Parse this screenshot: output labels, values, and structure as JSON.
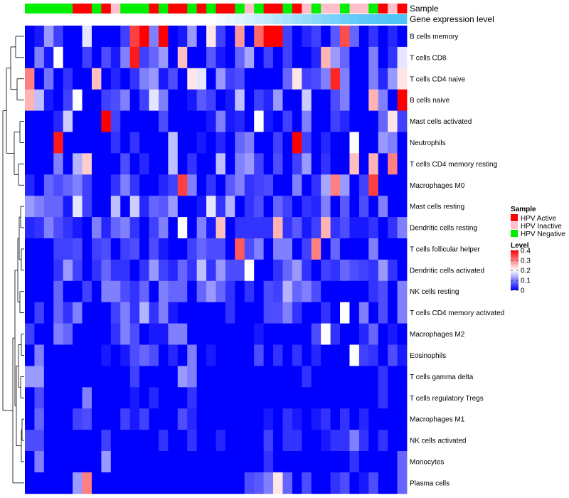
{
  "chart_data": {
    "type": "heatmap",
    "annotation_rows": [
      "Sample",
      "Gene expression level"
    ],
    "sample_legend": {
      "title": "Sample",
      "items": [
        {
          "label": "HPV Active",
          "color": "#ff0000"
        },
        {
          "label": "HPV Inactive",
          "color": "#ffc0cb"
        },
        {
          "label": "HPV Negative",
          "color": "#00ee00"
        }
      ]
    },
    "level_legend": {
      "title": "Level",
      "ticks": [
        "0.4",
        "0.3",
        "0.2",
        "0.1",
        "0"
      ],
      "range": [
        0,
        0.4
      ],
      "colors": {
        "low": "#0000ff",
        "mid": "#ffffff",
        "high": "#ff0000"
      }
    },
    "sample_groups": [
      "N",
      "N",
      "N",
      "N",
      "N",
      "A",
      "A",
      "N",
      "A",
      "I",
      "N",
      "N",
      "N",
      "A",
      "N",
      "A",
      "A",
      "N",
      "A",
      "N",
      "A",
      "A",
      "N",
      "I",
      "N",
      "A",
      "A",
      "N",
      "A",
      "I",
      "N",
      "I",
      "I",
      "N",
      "I",
      "I",
      "N",
      "A",
      "I",
      "A"
    ],
    "gene_expression_level": [
      0,
      0,
      0,
      0,
      0,
      0,
      0,
      0,
      0,
      0,
      0,
      0,
      0,
      0,
      0,
      0,
      0,
      0,
      0,
      0,
      0.06,
      0.12,
      0.18,
      0.24,
      0.3,
      0.36,
      0.42,
      0.48,
      0.54,
      0.6,
      0.66,
      0.72,
      0.78,
      0.84,
      0.88,
      0.92,
      0.95,
      0.97,
      0.99,
      1
    ],
    "rows": [
      "B cells memory",
      "T cells CD8",
      "T cells CD4 naive",
      "B cells naive",
      "Mast cells activated",
      "Neutrophils",
      "T cells CD4 memory resting",
      "Macrophages M0",
      "Mast cells resting",
      "Dendritic cells resting",
      "T cells follicular helper",
      "Dendritic cells activated",
      "NK cells resting",
      "T cells CD4 memory activated",
      "Macrophages M2",
      "Eosinophils",
      "T cells gamma delta",
      "T cells regulatory  Tregs",
      "Macrophages M1",
      "NK cells activated",
      "Monocytes",
      "Plasma cells"
    ],
    "values": [
      [
        0,
        0.02,
        0.12,
        0.05,
        0,
        0,
        0.18,
        0,
        0,
        0,
        0.05,
        0.35,
        0.4,
        0.1,
        0.4,
        0,
        0.02,
        0.12,
        0,
        0.22,
        0.05,
        0,
        0.28,
        0,
        0.32,
        0.4,
        0.4,
        0.05,
        0,
        0.03,
        0.05,
        0,
        0.07,
        0.34,
        0.08,
        0,
        0.04,
        0,
        0.03,
        0
      ],
      [
        0,
        0.1,
        0.02,
        0.2,
        0,
        0,
        0.05,
        0,
        0.06,
        0.02,
        0.1,
        0.38,
        0.05,
        0.08,
        0.12,
        0,
        0.25,
        0,
        0,
        0.07,
        0.02,
        0,
        0.08,
        0.13,
        0,
        0.05,
        0,
        0.05,
        0,
        0,
        0.03,
        0.26,
        0.12,
        0.08,
        0,
        0,
        0.1,
        0,
        0.04,
        0.18
      ],
      [
        0.3,
        0,
        0.09,
        0,
        0.04,
        0,
        0,
        0.25,
        0,
        0.03,
        0,
        0.04,
        0.1,
        0.12,
        0.02,
        0.06,
        0,
        0.22,
        0.18,
        0,
        0.12,
        0.05,
        0.06,
        0,
        0,
        0,
        0,
        0.08,
        0.22,
        0.05,
        0.06,
        0.1,
        0.37,
        0.1,
        0,
        0,
        0.1,
        0.03,
        0.12,
        0.22
      ],
      [
        0.26,
        0.15,
        0.02,
        0,
        0.05,
        0.2,
        0,
        0,
        0.05,
        0.06,
        0.1,
        0,
        0.05,
        0.18,
        0.1,
        0,
        0,
        0.02,
        0.07,
        0.05,
        0,
        0.02,
        0.15,
        0,
        0.05,
        0.03,
        0.12,
        0,
        0,
        0.16,
        0,
        0,
        0.06,
        0.1,
        0,
        0,
        0.26,
        0.1,
        0,
        0.4
      ],
      [
        0,
        0,
        0,
        0.03,
        0.16,
        0,
        0,
        0,
        0.4,
        0.05,
        0,
        0,
        0,
        0,
        0.06,
        0,
        0,
        0,
        0,
        0.02,
        0.1,
        0.02,
        0.03,
        0,
        0.2,
        0.02,
        0,
        0.05,
        0,
        0.1,
        0,
        0,
        0.05,
        0.03,
        0,
        0,
        0,
        0.08,
        0.22,
        0.05
      ],
      [
        0,
        0,
        0,
        0.38,
        0,
        0,
        0,
        0,
        0,
        0.04,
        0,
        0.04,
        0,
        0,
        0,
        0.15,
        0,
        0,
        0.02,
        0,
        0.03,
        0,
        0.08,
        0.1,
        0,
        0,
        0.05,
        0,
        0.4,
        0.05,
        0,
        0.03,
        0,
        0,
        0.2,
        0,
        0,
        0.12,
        0.1,
        0
      ],
      [
        0,
        0,
        0,
        0.1,
        0,
        0.14,
        0.24,
        0,
        0,
        0,
        0.06,
        0,
        0.03,
        0,
        0,
        0.15,
        0,
        0.04,
        0,
        0,
        0.15,
        0,
        0.1,
        0.12,
        0.05,
        0,
        0.06,
        0,
        0.05,
        0.12,
        0,
        0.04,
        0,
        0,
        0.25,
        0,
        0.26,
        0,
        0.3,
        0
      ],
      [
        0.03,
        0,
        0.08,
        0.06,
        0.08,
        0.1,
        0.05,
        0,
        0,
        0.04,
        0.1,
        0.04,
        0,
        0,
        0.03,
        0.05,
        0.35,
        0.1,
        0,
        0.04,
        0,
        0.07,
        0.1,
        0.04,
        0.05,
        0.06,
        0,
        0,
        0.1,
        0,
        0.04,
        0.13,
        0.3,
        0.12,
        0,
        0.05,
        0.35,
        0,
        0,
        0
      ],
      [
        0.12,
        0.1,
        0.08,
        0.08,
        0.02,
        0.18,
        0.05,
        0,
        0,
        0.15,
        0,
        0.16,
        0.03,
        0.08,
        0.07,
        0.12,
        0,
        0,
        0.02,
        0.18,
        0.04,
        0.14,
        0,
        0.04,
        0.06,
        0,
        0.08,
        0.05,
        0,
        0.04,
        0.03,
        0.1,
        0,
        0.07,
        0,
        0.06,
        0,
        0.1,
        0,
        0
      ],
      [
        0.03,
        0.04,
        0.1,
        0.06,
        0.04,
        0.02,
        0,
        0.1,
        0.03,
        0.08,
        0.1,
        0.04,
        0,
        0.05,
        0.1,
        0,
        0.2,
        0,
        0.1,
        0.02,
        0.25,
        0,
        0.04,
        0.04,
        0.04,
        0.04,
        0.26,
        0.04,
        0.07,
        0.02,
        0.05,
        0.26,
        0.04,
        0.06,
        0.02,
        0.02,
        0.04,
        0,
        0.04,
        0.1
      ],
      [
        0,
        0,
        0,
        0.05,
        0.05,
        0.06,
        0,
        0.05,
        0.06,
        0,
        0.05,
        0.06,
        0,
        0.06,
        0.02,
        0,
        0,
        0.05,
        0.08,
        0.06,
        0.06,
        0,
        0.33,
        0.06,
        0.1,
        0,
        0.1,
        0.1,
        0,
        0.05,
        0.3,
        0,
        0.08,
        0,
        0,
        0,
        0.1,
        0,
        0,
        0
      ],
      [
        0,
        0,
        0,
        0.04,
        0.12,
        0.05,
        0,
        0.04,
        0.08,
        0.04,
        0.04,
        0,
        0.04,
        0.12,
        0.05,
        0.03,
        0.08,
        0.04,
        0.15,
        0.04,
        0.12,
        0.06,
        0.06,
        0.2,
        0,
        0,
        0.04,
        0.08,
        0.12,
        0.04,
        0,
        0.05,
        0.04,
        0.08,
        0.06,
        0.05,
        0.04,
        0.12,
        0.04,
        0
      ],
      [
        0,
        0,
        0,
        0.08,
        0,
        0,
        0.05,
        0,
        0.1,
        0.1,
        0.06,
        0.04,
        0.08,
        0,
        0.1,
        0.08,
        0.08,
        0,
        0.08,
        0.12,
        0.08,
        0.04,
        0,
        0.04,
        0,
        0.06,
        0.05,
        0.14,
        0.08,
        0.1,
        0.06,
        0,
        0,
        0,
        0,
        0,
        0.04,
        0.06,
        0,
        0.1
      ],
      [
        0,
        0.05,
        0,
        0.08,
        0.04,
        0.1,
        0,
        0,
        0,
        0.05,
        0.1,
        0.04,
        0.14,
        0.04,
        0.1,
        0.02,
        0,
        0,
        0,
        0,
        0,
        0.04,
        0,
        0,
        0,
        0.06,
        0.06,
        0.1,
        0.04,
        0,
        0,
        0.04,
        0,
        0.2,
        0,
        0.1,
        0,
        0.06,
        0,
        0.1
      ],
      [
        0.05,
        0,
        0,
        0.1,
        0.08,
        0,
        0,
        0,
        0,
        0.04,
        0.1,
        0.06,
        0,
        0.02,
        0.02,
        0.1,
        0.1,
        0,
        0,
        0,
        0,
        0,
        0,
        0,
        0.02,
        0,
        0,
        0,
        0,
        0,
        0.06,
        0.2,
        0.04,
        0,
        0,
        0.03,
        0.08,
        0,
        0.02,
        0
      ],
      [
        0,
        0.1,
        0,
        0,
        0,
        0,
        0,
        0,
        0.02,
        0,
        0.02,
        0.06,
        0.08,
        0.06,
        0,
        0.03,
        0,
        0.1,
        0,
        0.02,
        0,
        0,
        0,
        0,
        0.06,
        0,
        0.04,
        0,
        0.04,
        0,
        0.03,
        0,
        0,
        0,
        0.2,
        0.05,
        0.04,
        0,
        0.06,
        0.02
      ],
      [
        0.12,
        0.12,
        0,
        0,
        0,
        0,
        0,
        0,
        0,
        0,
        0,
        0.05,
        0,
        0,
        0,
        0,
        0.12,
        0.1,
        0,
        0,
        0,
        0,
        0,
        0,
        0,
        0,
        0,
        0,
        0,
        0.04,
        0,
        0,
        0,
        0,
        0,
        0,
        0,
        0.04,
        0,
        0
      ],
      [
        0,
        0.06,
        0,
        0,
        0,
        0,
        0.1,
        0,
        0,
        0,
        0,
        0.02,
        0,
        0.03,
        0,
        0,
        0,
        0.04,
        0,
        0,
        0,
        0,
        0,
        0,
        0,
        0,
        0,
        0,
        0,
        0,
        0,
        0,
        0,
        0,
        0,
        0,
        0,
        0.04,
        0,
        0
      ],
      [
        0,
        0.08,
        0,
        0,
        0,
        0.05,
        0.06,
        0,
        0,
        0,
        0.05,
        0.02,
        0.05,
        0,
        0,
        0,
        0.06,
        0.03,
        0,
        0,
        0,
        0,
        0,
        0,
        0,
        0.02,
        0,
        0.04,
        0.02,
        0,
        0.02,
        0.04,
        0,
        0.04,
        0,
        0.03,
        0,
        0,
        0,
        0
      ],
      [
        0.06,
        0.06,
        0,
        0,
        0,
        0,
        0,
        0,
        0.05,
        0,
        0,
        0,
        0,
        0,
        0.04,
        0,
        0,
        0.04,
        0,
        0,
        0.03,
        0,
        0,
        0,
        0,
        0.05,
        0,
        0.04,
        0.04,
        0,
        0,
        0.02,
        0.04,
        0.04,
        0.1,
        0.04,
        0,
        0.04,
        0,
        0
      ],
      [
        0,
        0.1,
        0,
        0,
        0,
        0,
        0,
        0,
        0.12,
        0,
        0,
        0,
        0,
        0,
        0,
        0,
        0,
        0,
        0,
        0,
        0,
        0,
        0,
        0,
        0,
        0.04,
        0,
        0,
        0,
        0,
        0,
        0,
        0,
        0,
        0.04,
        0,
        0,
        0,
        0,
        0.08
      ],
      [
        0,
        0,
        0,
        0,
        0,
        0.12,
        0.3,
        0,
        0,
        0,
        0,
        0,
        0,
        0,
        0,
        0,
        0,
        0,
        0,
        0,
        0,
        0,
        0,
        0.06,
        0.07,
        0.1,
        0.22,
        0.08,
        0,
        0.06,
        0,
        0,
        0.04,
        0.06,
        0,
        0.02,
        0.06,
        0,
        0,
        0.08
      ]
    ]
  }
}
